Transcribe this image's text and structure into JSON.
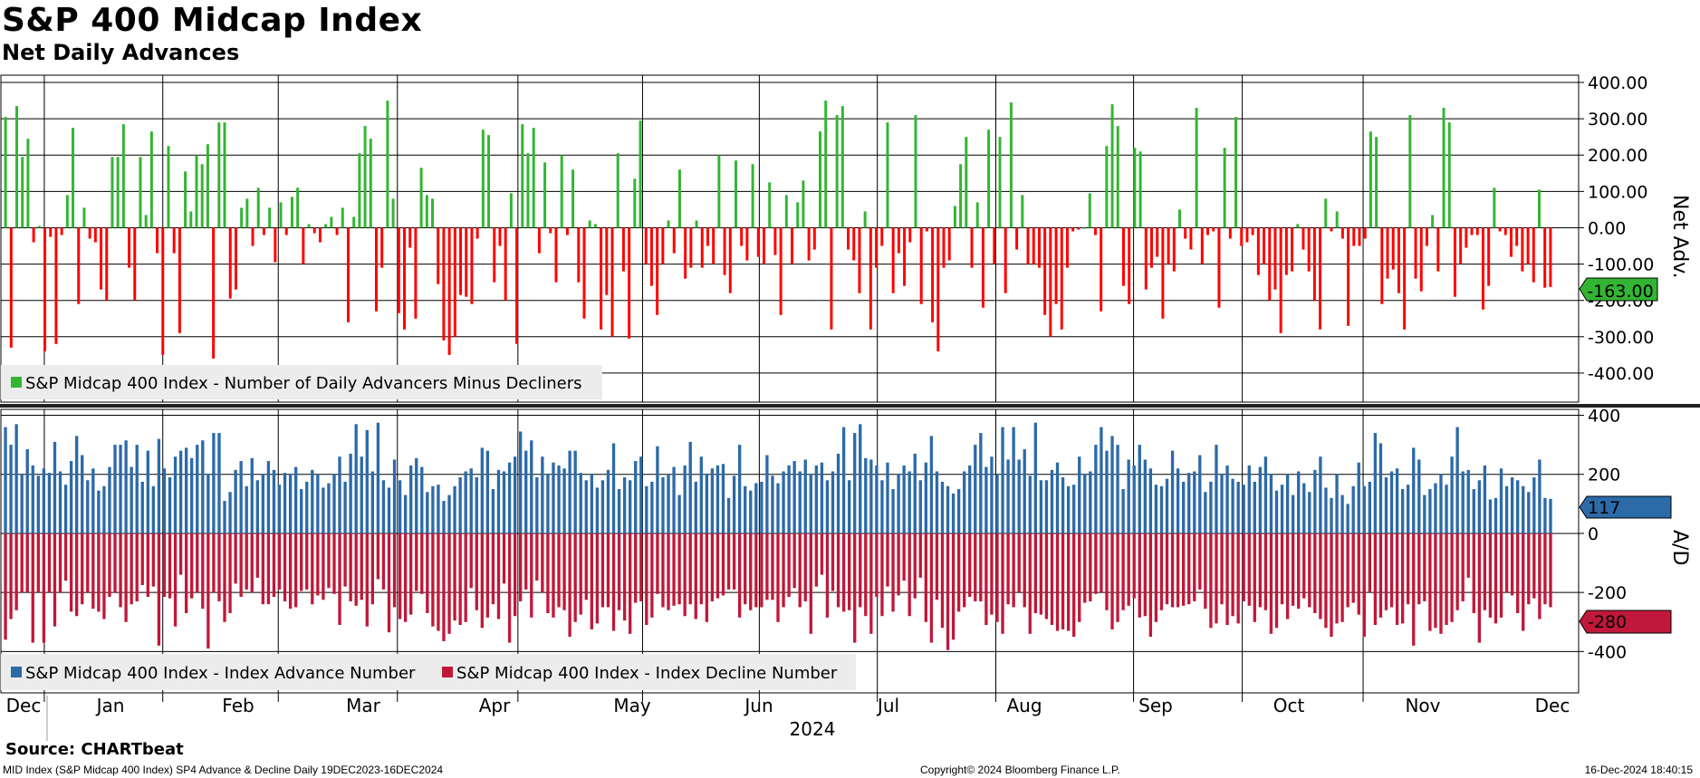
{
  "title": "S&P 400 Midcap Index",
  "subtitle": "Net Daily Advances",
  "source": "Source: CHARTbeat",
  "footer": {
    "left": "MID Index (S&P Midcap 400 Index) SP4 Advance & Decline  Daily 19DEC2023-16DEC2024",
    "center": "Copyright© 2024 Bloomberg Finance L.P.",
    "right": "16-Dec-2024 18:40:15"
  },
  "colors": {
    "net_positive": "#33b533",
    "net_negative": "#ff0000",
    "advance": "#2c6aa8",
    "decline": "#c0183a",
    "badge_net": "#33b533",
    "badge_adv": "#2c6aa8",
    "badge_dec": "#c0183a"
  },
  "chart_data": [
    {
      "type": "bar",
      "panel": "top",
      "ylabel": "Net Adv.",
      "ylim": [
        -480,
        420
      ],
      "yticks": [
        "400.00",
        "300.00",
        "200.00",
        "100.00",
        "0.00",
        "-100.00",
        "-200.00",
        "-300.00",
        "-400.00"
      ],
      "ytick_values": [
        400,
        300,
        200,
        100,
        0,
        -100,
        -200,
        -300,
        -400
      ],
      "last_value_label": "-163.00",
      "legend": "top-left",
      "series": [
        {
          "name": "S&P Midcap 400 Index - Number of Daily Advancers Minus Decliners",
          "values": [
            305,
            -330,
            335,
            195,
            245,
            -40,
            5,
            -340,
            -25,
            -320,
            -20,
            90,
            275,
            -210,
            55,
            -30,
            -40,
            -170,
            -200,
            195,
            195,
            285,
            -110,
            -200,
            195,
            35,
            265,
            -70,
            -350,
            225,
            -70,
            -290,
            155,
            45,
            200,
            175,
            230,
            -360,
            290,
            290,
            -195,
            -170,
            55,
            80,
            -50,
            110,
            -20,
            55,
            -95,
            70,
            -20,
            85,
            110,
            -100,
            10,
            -15,
            -40,
            10,
            30,
            -20,
            55,
            -260,
            30,
            205,
            280,
            245,
            -230,
            -110,
            350,
            80,
            -235,
            -280,
            -55,
            -250,
            165,
            90,
            80,
            -155,
            -310,
            -350,
            -300,
            -185,
            -190,
            -210,
            -30,
            270,
            255,
            -150,
            -50,
            -200,
            95,
            -320,
            285,
            205,
            275,
            -70,
            180,
            -15,
            -150,
            200,
            -20,
            160,
            -150,
            -250,
            20,
            10,
            -280,
            -185,
            -300,
            205,
            -120,
            -305,
            135,
            295,
            -100,
            -160,
            -240,
            -100,
            20,
            -70,
            160,
            -140,
            -110,
            20,
            -110,
            -50,
            -100,
            200,
            -130,
            -180,
            185,
            -50,
            -90,
            175,
            -80,
            -100,
            125,
            -75,
            -240,
            90,
            -100,
            70,
            130,
            -90,
            -60,
            265,
            350,
            -280,
            310,
            335,
            -60,
            -90,
            -180,
            45,
            -280,
            -110,
            -50,
            290,
            -180,
            -70,
            -160,
            -40,
            310,
            -210,
            -10,
            -260,
            -340,
            -110,
            -90,
            60,
            175,
            250,
            -110,
            70,
            -220,
            270,
            -100,
            250,
            -180,
            345,
            -60,
            90,
            -100,
            -100,
            -110,
            -240,
            -300,
            -210,
            -280,
            -110,
            -10,
            -5,
            0,
            95,
            -20,
            -230,
            225,
            340,
            280,
            -160,
            -210,
            220,
            210,
            -170,
            -110,
            -80,
            -250,
            -100,
            -120,
            50,
            -30,
            -60,
            330,
            -100,
            -20,
            -10,
            -220,
            220,
            -30,
            305,
            -50,
            -40,
            -20,
            -130,
            -100,
            -200,
            -170,
            -290,
            -130,
            -120,
            10,
            -60,
            -120,
            -200,
            -280,
            80,
            -10,
            45,
            -30,
            -270,
            -50,
            -50,
            -30,
            265,
            250,
            -210,
            -140,
            -115,
            -180,
            -280,
            310,
            -140,
            -175,
            -50,
            35,
            -120,
            330,
            290,
            -190,
            -100,
            -55,
            -20,
            -20,
            -225,
            -160,
            110,
            -10,
            -20,
            -80,
            -50,
            -120,
            -100,
            -150,
            105,
            -165,
            -163
          ]
        }
      ]
    },
    {
      "type": "bar",
      "panel": "bottom",
      "ylabel": "A/D",
      "ylim": [
        -540,
        420
      ],
      "yticks": [
        "400",
        "200",
        "0",
        "-200",
        "-400"
      ],
      "ytick_values": [
        400,
        200,
        0,
        -200,
        -400
      ],
      "last_value_labels": [
        "117",
        "-280"
      ],
      "legend": "bottom-left",
      "x": {
        "tick_labels": [
          "Dec",
          "Jan",
          "Feb",
          "Mar",
          "Apr",
          "May",
          "Jun",
          "Jul",
          "Aug",
          "Sep",
          "Oct",
          "Nov",
          "Dec"
        ],
        "year_label": "2024"
      },
      "series": [
        {
          "name": "S&P Midcap 400 Index - Index Advance Number",
          "values": [
            360,
            300,
            370,
            200,
            285,
            230,
            195,
            220,
            205,
            310,
            210,
            165,
            245,
            330,
            265,
            180,
            220,
            145,
            160,
            225,
            300,
            300,
            315,
            225,
            300,
            175,
            280,
            160,
            320,
            220,
            190,
            260,
            280,
            290,
            255,
            300,
            315,
            200,
            340,
            340,
            110,
            140,
            215,
            245,
            160,
            255,
            180,
            200,
            245,
            215,
            165,
            205,
            200,
            225,
            150,
            175,
            215,
            200,
            155,
            170,
            200,
            260,
            175,
            270,
            370,
            260,
            350,
            210,
            375,
            180,
            155,
            250,
            180,
            130,
            230,
            255,
            225,
            140,
            160,
            165,
            110,
            130,
            160,
            190,
            210,
            220,
            190,
            290,
            280,
            150,
            215,
            210,
            240,
            260,
            345,
            280,
            315,
            190,
            260,
            200,
            240,
            230,
            220,
            280,
            280,
            205,
            180,
            200,
            155,
            180,
            215,
            305,
            150,
            190,
            180,
            245,
            260,
            160,
            175,
            295,
            190,
            200,
            225,
            130,
            230,
            310,
            175,
            260,
            200,
            220,
            230,
            235,
            120,
            195,
            300,
            160,
            145,
            170,
            175,
            265,
            195,
            170,
            210,
            230,
            245,
            210,
            250,
            200,
            230,
            240,
            180,
            210,
            270,
            360,
            180,
            340,
            370,
            255,
            250,
            230,
            180,
            240,
            150,
            200,
            230,
            210,
            270,
            180,
            240,
            330,
            210,
            175,
            160,
            135,
            150,
            210,
            230,
            300,
            340,
            225,
            260,
            200,
            360,
            250,
            360,
            250,
            285,
            195,
            375,
            180,
            180,
            215,
            240,
            190,
            160,
            165,
            260,
            200,
            210,
            300,
            360,
            280,
            330,
            300,
            150,
            250,
            230,
            300,
            250,
            220,
            165,
            160,
            185,
            280,
            220,
            175,
            205,
            210,
            265,
            140,
            175,
            300,
            200,
            230,
            185,
            175,
            165,
            230,
            175,
            225,
            260,
            200,
            145,
            165,
            200,
            130,
            210,
            170,
            140,
            215,
            260,
            155,
            120,
            200,
            130,
            100,
            160,
            240,
            160,
            175,
            340,
            305,
            190,
            210,
            220,
            150,
            165,
            290,
            250,
            130,
            150,
            170,
            200,
            165,
            260,
            360,
            210,
            215,
            150,
            180,
            230,
            115,
            120,
            220,
            160,
            190,
            180,
            160,
            140,
            190,
            250,
            120,
            117
          ]
        },
        {
          "name": "S&P Midcap 400 Index - Index Decline Number",
          "values": [
            -360,
            -290,
            -260,
            -200,
            -200,
            -370,
            -200,
            -370,
            -200,
            -315,
            -200,
            -160,
            -265,
            -280,
            -240,
            -200,
            -255,
            -265,
            -290,
            -215,
            -200,
            -250,
            -300,
            -240,
            -230,
            -175,
            -215,
            -180,
            -380,
            -215,
            -220,
            -315,
            -140,
            -270,
            -220,
            -200,
            -255,
            -390,
            -200,
            -230,
            -300,
            -270,
            -170,
            -215,
            -190,
            -200,
            -150,
            -240,
            -240,
            -215,
            -190,
            -230,
            -255,
            -250,
            -195,
            -190,
            -240,
            -210,
            -225,
            -185,
            -205,
            -310,
            -180,
            -230,
            -245,
            -225,
            -315,
            -240,
            -155,
            -190,
            -335,
            -250,
            -290,
            -300,
            -275,
            -195,
            -205,
            -270,
            -315,
            -330,
            -365,
            -340,
            -295,
            -310,
            -300,
            -185,
            -260,
            -320,
            -285,
            -240,
            -290,
            -170,
            -370,
            -280,
            -230,
            -190,
            -285,
            -160,
            -200,
            -270,
            -285,
            -250,
            -260,
            -350,
            -300,
            -275,
            -225,
            -325,
            -305,
            -250,
            -250,
            -330,
            -260,
            -295,
            -340,
            -235,
            -230,
            -310,
            -285,
            -205,
            -250,
            -260,
            -245,
            -240,
            -280,
            -240,
            -290,
            -240,
            -300,
            -230,
            -220,
            -210,
            -190,
            -190,
            -285,
            -240,
            -260,
            -250,
            -250,
            -225,
            -225,
            -300,
            -250,
            -215,
            -185,
            -250,
            -230,
            -340,
            -180,
            -140,
            -285,
            -195,
            -250,
            -265,
            -260,
            -370,
            -250,
            -280,
            -340,
            -215,
            -280,
            -180,
            -265,
            -210,
            -160,
            -280,
            -220,
            -150,
            -300,
            -370,
            -225,
            -320,
            -395,
            -360,
            -265,
            -250,
            -215,
            -230,
            -230,
            -310,
            -275,
            -300,
            -340,
            -240,
            -250,
            -200,
            -250,
            -340,
            -270,
            -275,
            -290,
            -310,
            -330,
            -325,
            -330,
            -350,
            -300,
            -235,
            -230,
            -205,
            -200,
            -260,
            -325,
            -300,
            -260,
            -245,
            -220,
            -285,
            -280,
            -350,
            -300,
            -260,
            -240,
            -250,
            -250,
            -245,
            -240,
            -230,
            -190,
            -255,
            -320,
            -305,
            -240,
            -310,
            -280,
            -305,
            -230,
            -245,
            -300,
            -250,
            -260,
            -340,
            -320,
            -240,
            -290,
            -245,
            -255,
            -220,
            -250,
            -270,
            -290,
            -320,
            -350,
            -305,
            -300,
            -250,
            -235,
            -275,
            -350,
            -200,
            -310,
            -285,
            -260,
            -250,
            -310,
            -305,
            -240,
            -380,
            -240,
            -230,
            -330,
            -320,
            -340,
            -310,
            -300,
            -260,
            -230,
            -150,
            -270,
            -370,
            -260,
            -285,
            -305,
            -285,
            -200,
            -210,
            -270,
            -330,
            -240,
            -220,
            -290,
            -240,
            -250,
            -240,
            -270,
            -280,
            -280
          ]
        }
      ]
    }
  ]
}
